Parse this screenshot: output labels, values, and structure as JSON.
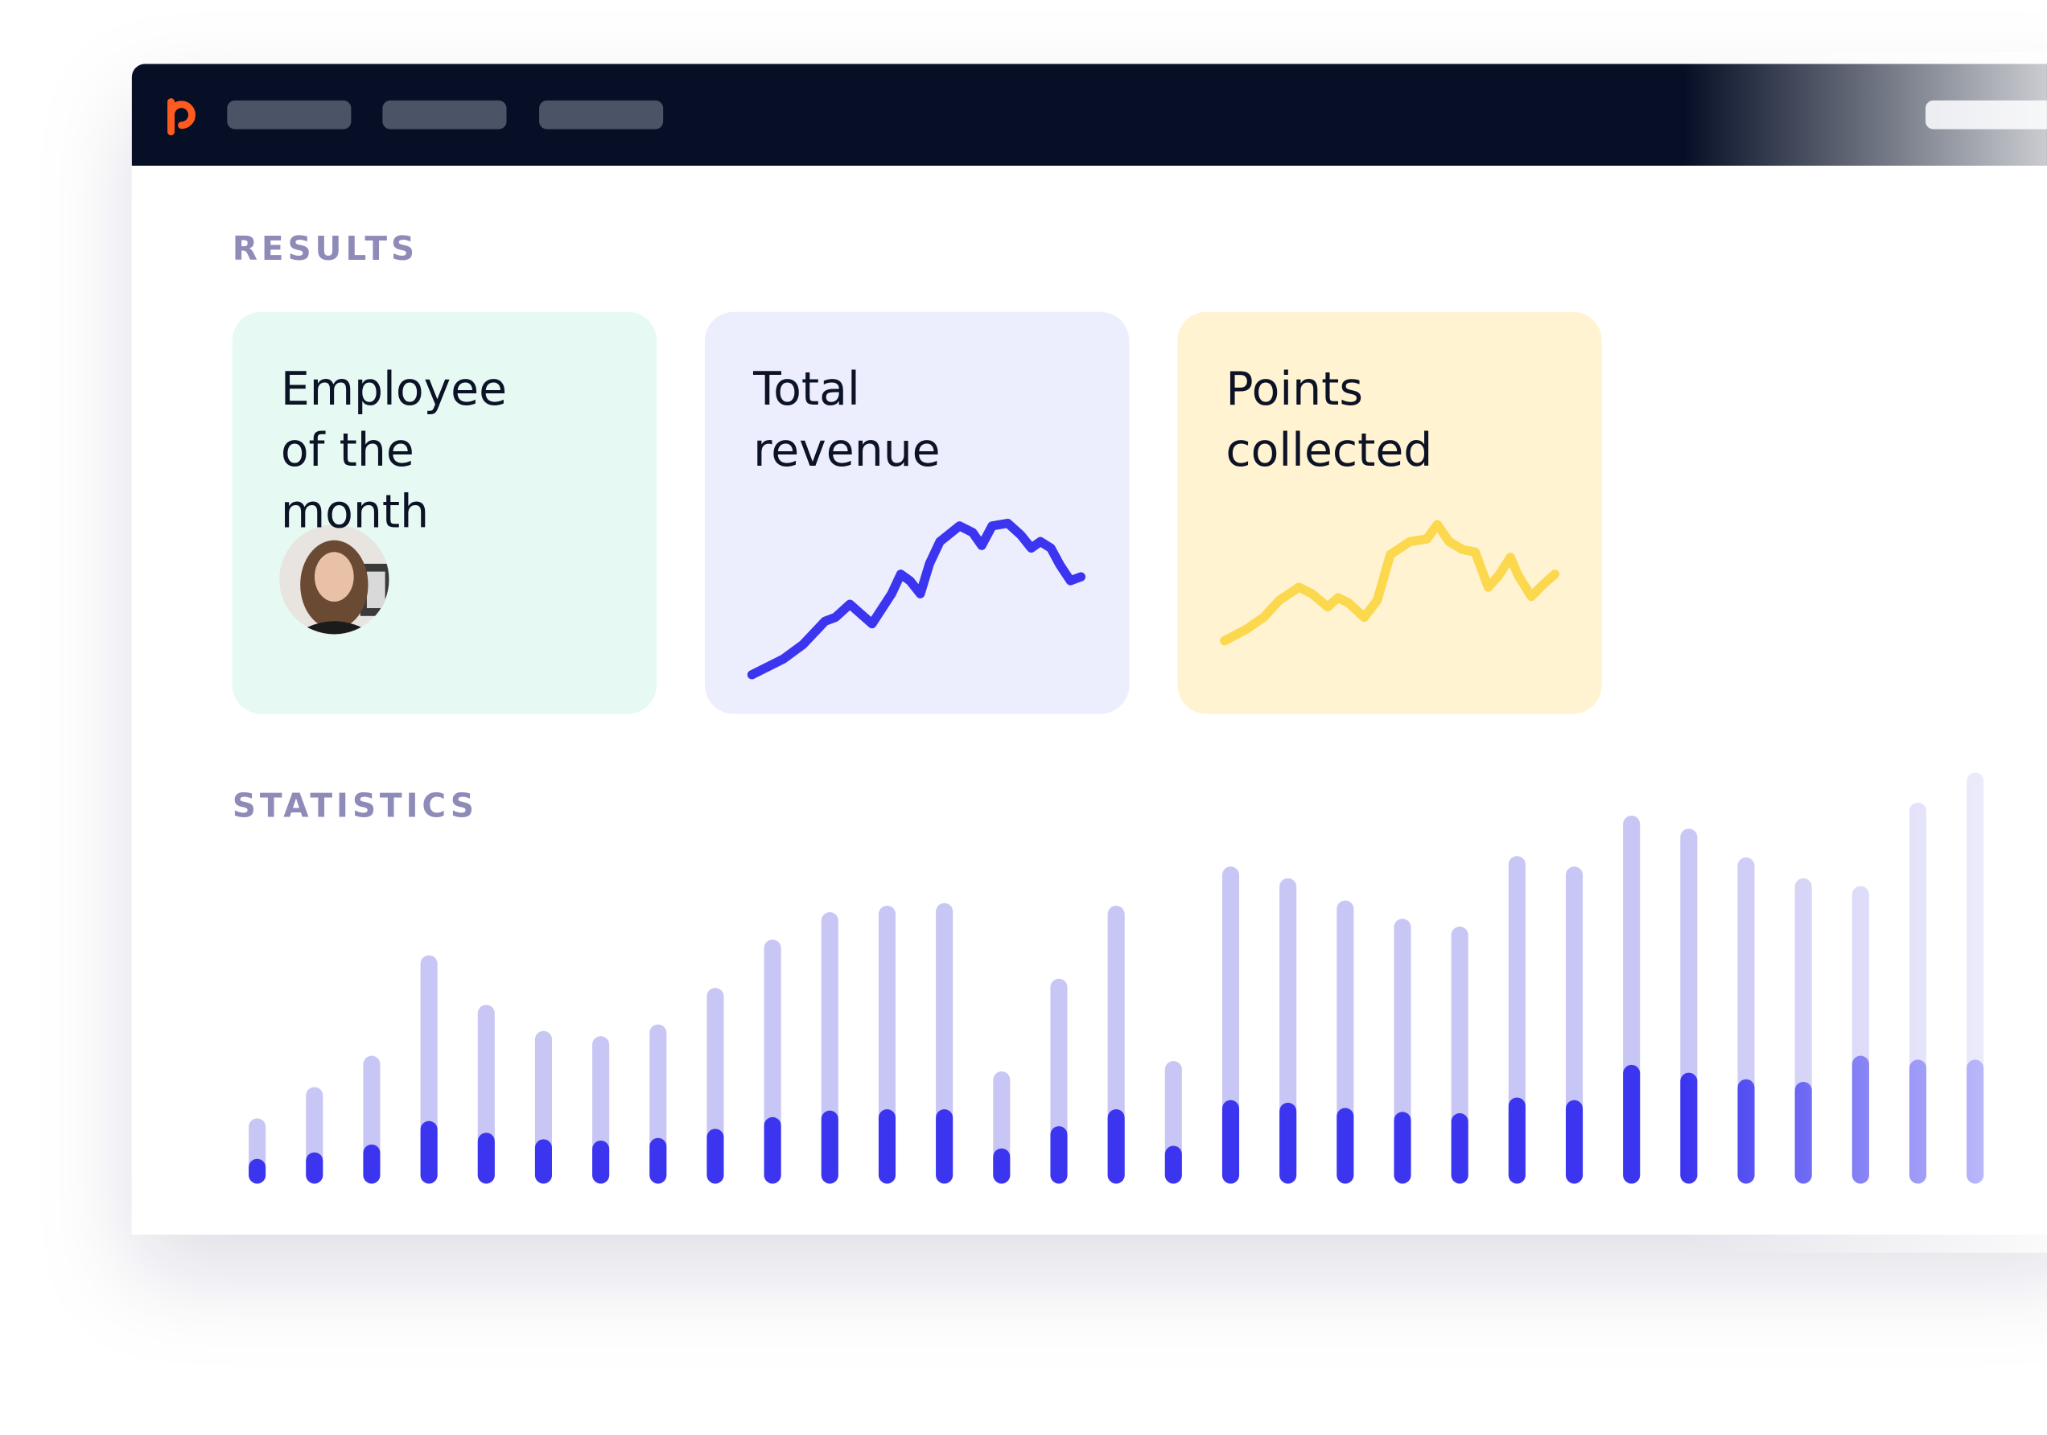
{
  "results": {
    "heading": "RESULTS",
    "cards": [
      {
        "title": "Employee of the month"
      },
      {
        "title": "Total revenue",
        "chart_data": {
          "type": "line",
          "color": "#3b35f0",
          "xlim": [
            0,
            325
          ],
          "ylim": [
            0,
            308
          ],
          "x": [
            36,
            60,
            75,
            92,
            100,
            111,
            128,
            143,
            150,
            157,
            165,
            172,
            180,
            195,
            205,
            212,
            220,
            232,
            242,
            250,
            257,
            265,
            272,
            280,
            288
          ],
          "values": [
            30,
            42,
            53,
            71,
            74,
            84,
            69,
            92,
            107,
            102,
            92,
            115,
            132,
            144,
            139,
            129,
            144,
            146,
            137,
            127,
            132,
            127,
            114,
            102,
            105
          ]
        }
      },
      {
        "title": "Points collected",
        "chart_data": {
          "type": "line",
          "color": "#fcd84f",
          "xlim": [
            0,
            325
          ],
          "ylim": [
            0,
            308
          ],
          "x": [
            36,
            53,
            66,
            78,
            93,
            103,
            115,
            123,
            131,
            143,
            153,
            163,
            178,
            191,
            199,
            208,
            218,
            228,
            238,
            246,
            255,
            261,
            271,
            281,
            289
          ],
          "values": [
            56,
            65,
            74,
            87,
            97,
            92,
            82,
            89,
            85,
            74,
            87,
            122,
            132,
            134,
            145,
            132,
            126,
            124,
            97,
            106,
            120,
            106,
            90,
            100,
            107
          ]
        }
      }
    ]
  },
  "statistics": {
    "heading": "STATISTICS",
    "chart_data": {
      "type": "bar",
      "ylim": [
        0,
        320
      ],
      "series": [
        {
          "color": "#c8c6f5",
          "values": [
            50,
            74,
            98,
            175,
            137,
            117,
            113,
            122,
            150,
            187,
            208,
            213,
            215,
            86,
            157,
            213,
            94,
            243,
            234,
            217,
            203,
            197,
            251,
            243,
            282,
            272,
            250,
            234,
            228,
            292,
            315
          ]
        },
        {
          "color": "#3b35f0",
          "values": [
            19,
            24,
            30,
            48,
            39,
            34,
            33,
            35,
            42,
            51,
            56,
            57,
            57,
            27,
            44,
            57,
            29,
            64,
            62,
            58,
            55,
            54,
            66,
            64,
            91,
            85,
            80,
            78,
            98,
            95,
            95
          ]
        }
      ]
    }
  }
}
